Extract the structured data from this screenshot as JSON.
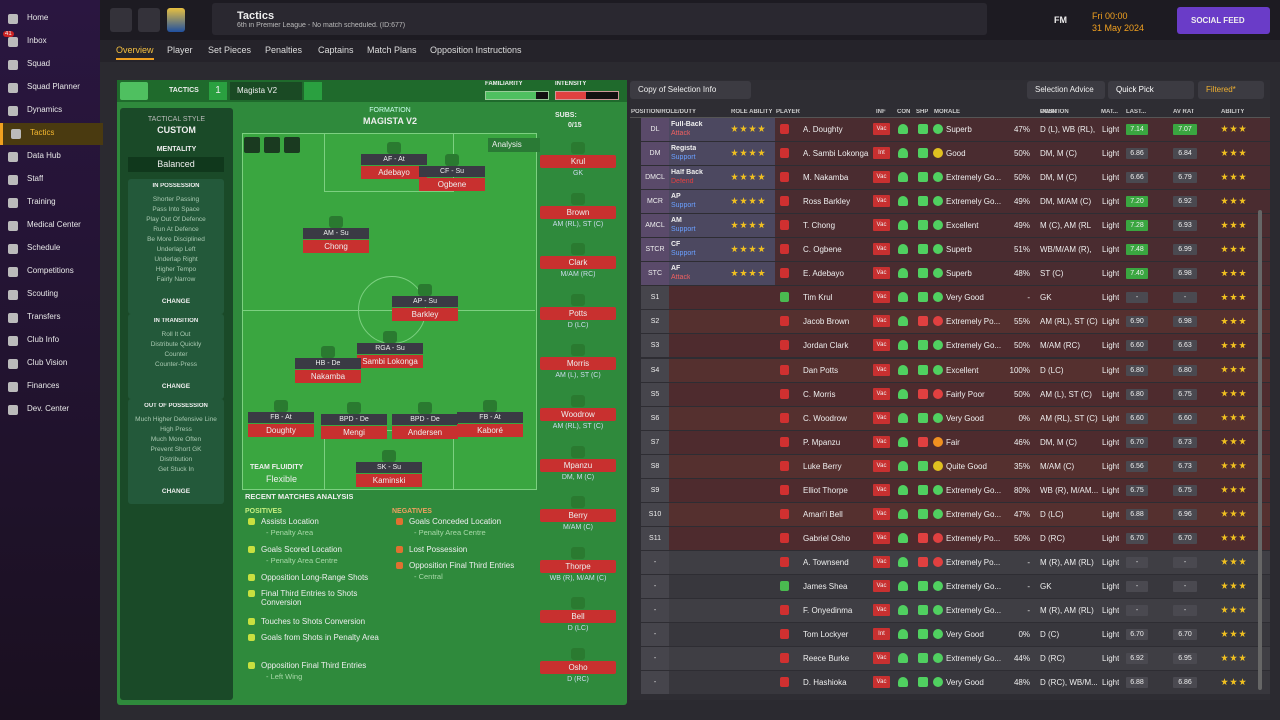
{
  "sidebar": {
    "items": [
      "Home",
      "Inbox",
      "Squad",
      "Squad Planner",
      "Dynamics",
      "Tactics",
      "Data Hub",
      "Staff",
      "Training",
      "Medical Center",
      "Schedule",
      "Competitions",
      "Scouting",
      "Transfers",
      "Club Info",
      "Club Vision",
      "Finances",
      "Dev. Center"
    ],
    "badge": "41"
  },
  "topbar": {
    "title": "Tactics",
    "subtitle": "6th in Premier League - No match scheduled. (ID:677)",
    "fm": "FM",
    "time": "Fri 00:00",
    "date": "31 May 2024",
    "social": "SOCIAL FEED"
  },
  "tabs": [
    "Overview",
    "Player",
    "Set Pieces",
    "Penalties",
    "Captains",
    "Match Plans",
    "Opposition Instructions"
  ],
  "tactics": {
    "header": "TACTICS",
    "slot": "1",
    "name": "Magista V2",
    "familiarity": "FAMILIARITY",
    "intensity": "INTENSITY",
    "style_label": "TACTICAL STYLE",
    "style": "CUSTOM",
    "mentality_label": "MENTALITY",
    "mentality": "Balanced",
    "sections": [
      {
        "title": "IN POSSESSION",
        "items": [
          "Shorter Passing",
          "Pass Into Space",
          "Play Out Of Defence",
          "Run At Defence",
          "Be More Disciplined",
          "Underlap Left",
          "Underlap Right",
          "Higher Tempo",
          "Fairly Narrow"
        ],
        "change": "CHANGE"
      },
      {
        "title": "IN TRANSITION",
        "items": [
          "Roll It Out",
          "Distribute Quickly",
          "Counter",
          "Counter-Press"
        ],
        "change": "CHANGE"
      },
      {
        "title": "OUT OF POSSESSION",
        "items": [
          "Much Higher Defensive Line",
          "High Press",
          "Much More Often",
          "Prevent Short GK",
          "Distribution",
          "Get Stuck In"
        ],
        "change": "CHANGE"
      }
    ]
  },
  "pitch": {
    "formation_label": "FORMATION",
    "formation": "MAGISTA V2",
    "subs_label": "SUBS:",
    "subs_count": "0/15",
    "analysis": "Analysis",
    "fluidity_label": "TEAM FLUIDITY",
    "fluidity": "Flexible",
    "players": [
      {
        "role": "AF - At",
        "name": "Adebayo"
      },
      {
        "role": "CF - Su",
        "name": "Ogbene"
      },
      {
        "role": "AM - Su",
        "name": "Chong"
      },
      {
        "role": "AP - Su",
        "name": "Barkley"
      },
      {
        "role": "RGA - Su",
        "name": "Sambi Lokonga"
      },
      {
        "role": "HB - De",
        "name": "Nakamba"
      },
      {
        "role": "FB - At",
        "name": "Doughty"
      },
      {
        "role": "BPD - De",
        "name": "Mengi"
      },
      {
        "role": "BPD - De",
        "name": "Andersen"
      },
      {
        "role": "FB - At",
        "name": "Kaboré"
      },
      {
        "role": "SK - Su",
        "name": "Kaminski"
      }
    ],
    "subs": [
      {
        "name": "Krul",
        "pos": "GK"
      },
      {
        "name": "Brown",
        "pos": "AM (RL), ST (C)"
      },
      {
        "name": "Clark",
        "pos": "M/AM (RC)"
      },
      {
        "name": "Potts",
        "pos": "D (LC)"
      },
      {
        "name": "Morris",
        "pos": "AM (L), ST (C)"
      },
      {
        "name": "Woodrow",
        "pos": "AM (RL), ST (C)"
      },
      {
        "name": "Mpanzu",
        "pos": "DM, M (C)"
      },
      {
        "name": "Berry",
        "pos": "M/AM (C)"
      },
      {
        "name": "Thorpe",
        "pos": "WB (R), M/AM (C)"
      },
      {
        "name": "Bell",
        "pos": "D (LC)"
      },
      {
        "name": "Osho",
        "pos": "D (RC)"
      }
    ]
  },
  "analysis": {
    "title": "RECENT MATCHES ANALYSIS",
    "positives_label": "POSITIVES",
    "negatives_label": "NEGATIVES",
    "positives": [
      {
        "text": "Assists Location",
        "sub": "- Penalty Area"
      },
      {
        "text": "Goals Scored Location",
        "sub": "- Penalty Area Centre"
      },
      {
        "text": "Opposition Long-Range Shots"
      },
      {
        "text": "Final Third Entries to Shots Conversion"
      },
      {
        "text": "Touches to Shots Conversion"
      },
      {
        "text": "Goals from Shots in Penalty Area"
      },
      {
        "text": "Opposition Final Third Entries",
        "sub": "- Left Wing"
      }
    ],
    "negatives": [
      {
        "text": "Goals Conceded Location",
        "sub": "- Penalty Area Centre"
      },
      {
        "text": "Lost Possession"
      },
      {
        "text": "Opposition Final Third Entries",
        "sub": "- Central"
      }
    ]
  },
  "table": {
    "copy": "Copy of Selection Info",
    "advice": "Selection Advice",
    "quick": "Quick Pick",
    "filtered": "Filtered*",
    "columns": [
      "POSITION/ROLE/DUTY",
      "ROLE ABILITY",
      "PLAYER",
      "INF",
      "CON",
      "SHP",
      "MORALE",
      "GWIN",
      "POSITION",
      "MAT...",
      "LAST...",
      "AV RAT",
      "ABILITY"
    ],
    "rows": [
      {
        "slot": "DL",
        "role": "Full-Back",
        "duty": "Attack",
        "player": "A. Doughty",
        "inf": "Vac",
        "morale": "Superb",
        "gwin": "47%",
        "position": "D (L), WB (RL),",
        "mat": "Light",
        "last": "7.14",
        "avrat": "7.07"
      },
      {
        "slot": "DM",
        "role": "Regista",
        "duty": "Support",
        "player": "A. Sambi Lokonga",
        "inf": "Int",
        "morale": "Good",
        "gwin": "50%",
        "position": "DM, M (C)",
        "mat": "Light",
        "last": "6.86",
        "avrat": "6.84"
      },
      {
        "slot": "DMCL",
        "role": "Half Back",
        "duty": "Defend",
        "player": "M. Nakamba",
        "inf": "Vac",
        "morale": "Extremely Go...",
        "gwin": "50%",
        "position": "DM, M (C)",
        "mat": "Light",
        "last": "6.66",
        "avrat": "6.79"
      },
      {
        "slot": "MCR",
        "role": "AP",
        "duty": "Support",
        "player": "Ross Barkley",
        "inf": "Vac",
        "morale": "Extremely Go...",
        "gwin": "49%",
        "position": "DM, M/AM (C)",
        "mat": "Light",
        "last": "7.20",
        "avrat": "6.92"
      },
      {
        "slot": "AMCL",
        "role": "AM",
        "duty": "Support",
        "player": "T. Chong",
        "inf": "Vac",
        "morale": "Excellent",
        "gwin": "49%",
        "position": "M (C), AM (RL",
        "mat": "Light",
        "last": "7.28",
        "avrat": "6.93"
      },
      {
        "slot": "STCR",
        "role": "CF",
        "duty": "Support",
        "player": "C. Ogbene",
        "inf": "Vac",
        "morale": "Superb",
        "gwin": "51%",
        "position": "WB/M/AM (R),",
        "mat": "Light",
        "last": "7.48",
        "avrat": "6.99"
      },
      {
        "slot": "STC",
        "role": "AF",
        "duty": "Attack",
        "player": "E. Adebayo",
        "inf": "Vac",
        "morale": "Superb",
        "gwin": "48%",
        "position": "ST (C)",
        "mat": "Light",
        "last": "7.40",
        "avrat": "6.98"
      },
      {
        "slot": "S1",
        "player": "Tim Krul",
        "inf": "Vac",
        "morale": "Very Good",
        "gwin": "-",
        "position": "GK",
        "mat": "Light",
        "last": "-",
        "avrat": "-"
      },
      {
        "slot": "S2",
        "player": "Jacob Brown",
        "inf": "Vac",
        "morale": "Extremely Po...",
        "gwin": "55%",
        "position": "AM (RL), ST (C)",
        "mat": "Light",
        "last": "6.90",
        "avrat": "6.98"
      },
      {
        "slot": "S3",
        "player": "Jordan Clark",
        "inf": "Vac",
        "morale": "Extremely Go...",
        "gwin": "50%",
        "position": "M/AM (RC)",
        "mat": "Light",
        "last": "6.60",
        "avrat": "6.63"
      },
      {
        "slot": "S4",
        "player": "Dan Potts",
        "inf": "Vac",
        "morale": "Excellent",
        "gwin": "100%",
        "position": "D (LC)",
        "mat": "Light",
        "last": "6.80",
        "avrat": "6.80"
      },
      {
        "slot": "S5",
        "player": "C. Morris",
        "inf": "Vac",
        "morale": "Fairly Poor",
        "gwin": "50%",
        "position": "AM (L), ST (C)",
        "mat": "Light",
        "last": "6.80",
        "avrat": "6.75"
      },
      {
        "slot": "S6",
        "player": "C. Woodrow",
        "inf": "Vac",
        "morale": "Very Good",
        "gwin": "0%",
        "position": "AM (RL), ST (C)",
        "mat": "Light",
        "last": "6.60",
        "avrat": "6.60"
      },
      {
        "slot": "S7",
        "player": "P. Mpanzu",
        "inf": "Vac",
        "morale": "Fair",
        "gwin": "46%",
        "position": "DM, M (C)",
        "mat": "Light",
        "last": "6.70",
        "avrat": "6.73"
      },
      {
        "slot": "S8",
        "player": "Luke Berry",
        "inf": "Vac",
        "morale": "Quite Good",
        "gwin": "35%",
        "position": "M/AM (C)",
        "mat": "Light",
        "last": "6.56",
        "avrat": "6.73"
      },
      {
        "slot": "S9",
        "player": "Elliot Thorpe",
        "inf": "Vac",
        "morale": "Extremely Go...",
        "gwin": "80%",
        "position": "WB (R), M/AM...",
        "mat": "Light",
        "last": "6.75",
        "avrat": "6.75"
      },
      {
        "slot": "S10",
        "player": "Amari'i Bell",
        "inf": "Vac",
        "morale": "Extremely Go...",
        "gwin": "47%",
        "position": "D (LC)",
        "mat": "Light",
        "last": "6.88",
        "avrat": "6.96"
      },
      {
        "slot": "S11",
        "player": "Gabriel Osho",
        "inf": "Vac",
        "morale": "Extremely Po...",
        "gwin": "50%",
        "position": "D (RC)",
        "mat": "Light",
        "last": "6.70",
        "avrat": "6.70"
      },
      {
        "slot": "-",
        "player": "A. Townsend",
        "inf": "Vac",
        "morale": "Extremely Po...",
        "gwin": "-",
        "position": "M (R), AM (RL)",
        "mat": "Light",
        "last": "-",
        "avrat": "-"
      },
      {
        "slot": "-",
        "player": "James Shea",
        "inf": "Vac",
        "morale": "Extremely Go...",
        "gwin": "-",
        "position": "GK",
        "mat": "Light",
        "last": "-",
        "avrat": "-"
      },
      {
        "slot": "-",
        "player": "F. Onyedinma",
        "inf": "Vac",
        "morale": "Extremely Go...",
        "gwin": "-",
        "position": "M (R), AM (RL)",
        "mat": "Light",
        "last": "-",
        "avrat": "-"
      },
      {
        "slot": "-",
        "player": "Tom Lockyer",
        "inf": "Int",
        "morale": "Very Good",
        "gwin": "0%",
        "position": "D (C)",
        "mat": "Light",
        "last": "6.70",
        "avrat": "6.70"
      },
      {
        "slot": "-",
        "player": "Reece Burke",
        "inf": "Vac",
        "morale": "Extremely Go...",
        "gwin": "44%",
        "position": "D (RC)",
        "mat": "Light",
        "last": "6.92",
        "avrat": "6.95"
      },
      {
        "slot": "-",
        "player": "D. Hashioka",
        "inf": "Vac",
        "morale": "Very Good",
        "gwin": "48%",
        "position": "D (RC), WB/M...",
        "mat": "Light",
        "last": "6.88",
        "avrat": "6.86"
      }
    ]
  }
}
